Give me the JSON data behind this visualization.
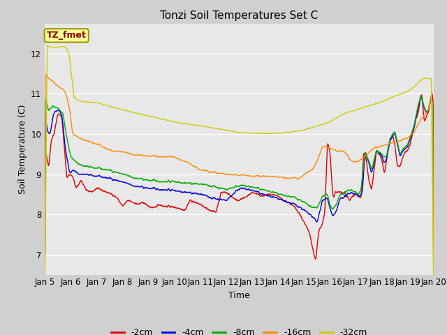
{
  "title": "Tonzi Soil Temperatures Set C",
  "xlabel": "Time",
  "ylabel": "Soil Temperature (C)",
  "ylim": [
    6.5,
    12.75
  ],
  "xlim": [
    0,
    15
  ],
  "xtick_labels": [
    "Jan 5",
    "Jan 6",
    "Jan 7",
    "Jan 8",
    "Jan 9",
    "Jan 10",
    "Jan 11",
    "Jan 12",
    "Jan 13",
    "Jan 14",
    "Jan 15",
    "Jan 16",
    "Jan 17",
    "Jan 18",
    "Jan 19",
    "Jan 20"
  ],
  "legend_labels": [
    "-2cm",
    "-4cm",
    "-8cm",
    "-16cm",
    "-32cm"
  ],
  "legend_colors": [
    "#dd0000",
    "#0000dd",
    "#00aa00",
    "#ff8800",
    "#cccc00"
  ],
  "line_colors": [
    "#dd0000",
    "#0000dd",
    "#00aa00",
    "#ff8800",
    "#cccc00"
  ],
  "plot_bg_color": "#e8e8e8",
  "fig_bg_color": "#d0d0d0",
  "annotation_text": "TZ_fmet",
  "annotation_bg": "#ffff99",
  "annotation_border": "#999900",
  "annotation_color": "#880000",
  "title_fontsize": 11,
  "label_fontsize": 9,
  "tick_fontsize": 8.5,
  "legend_fontsize": 9
}
